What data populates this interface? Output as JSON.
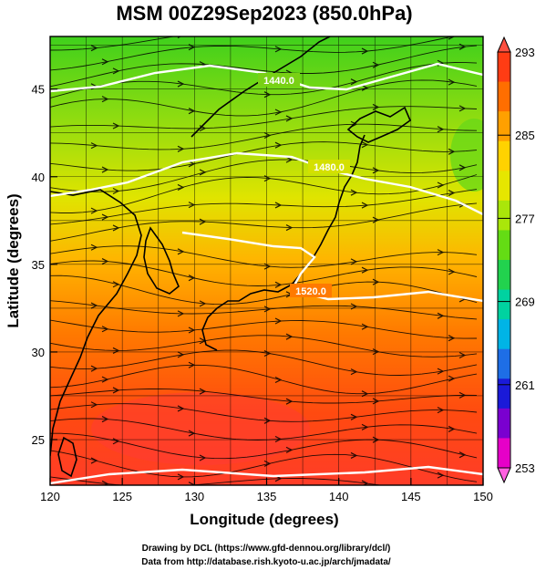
{
  "title": "MSM 00Z29Sep2023 (850.0hPa)",
  "xaxis": {
    "label": "Longitude (degrees)",
    "ticks": [
      "120",
      "125",
      "130",
      "135",
      "140",
      "145",
      "150"
    ]
  },
  "yaxis": {
    "label": "Latitude  (degrees)",
    "ticks": [
      "25",
      "30",
      "35",
      "40",
      "45"
    ]
  },
  "colorbar": {
    "ticks": [
      "253",
      "261",
      "269",
      "277",
      "285",
      "293"
    ],
    "colors": [
      "#e600c8",
      "#7a00d0",
      "#1a1ad8",
      "#1e6ee6",
      "#00b4e6",
      "#00d2a0",
      "#22d24e",
      "#64dc14",
      "#aae60a",
      "#e6e600",
      "#ffd200",
      "#ffa000",
      "#ff6e00",
      "#ff3c14"
    ]
  },
  "contour_labels": [
    "1440.0",
    "1480.0",
    "1520.0"
  ],
  "credits": {
    "line1": "Drawing by DCL (https://www.gfd-dennou.org/library/dcl/)",
    "line2": "Data from http://database.rish.kyoto-u.ac.jp/arch/jmadata/"
  }
}
